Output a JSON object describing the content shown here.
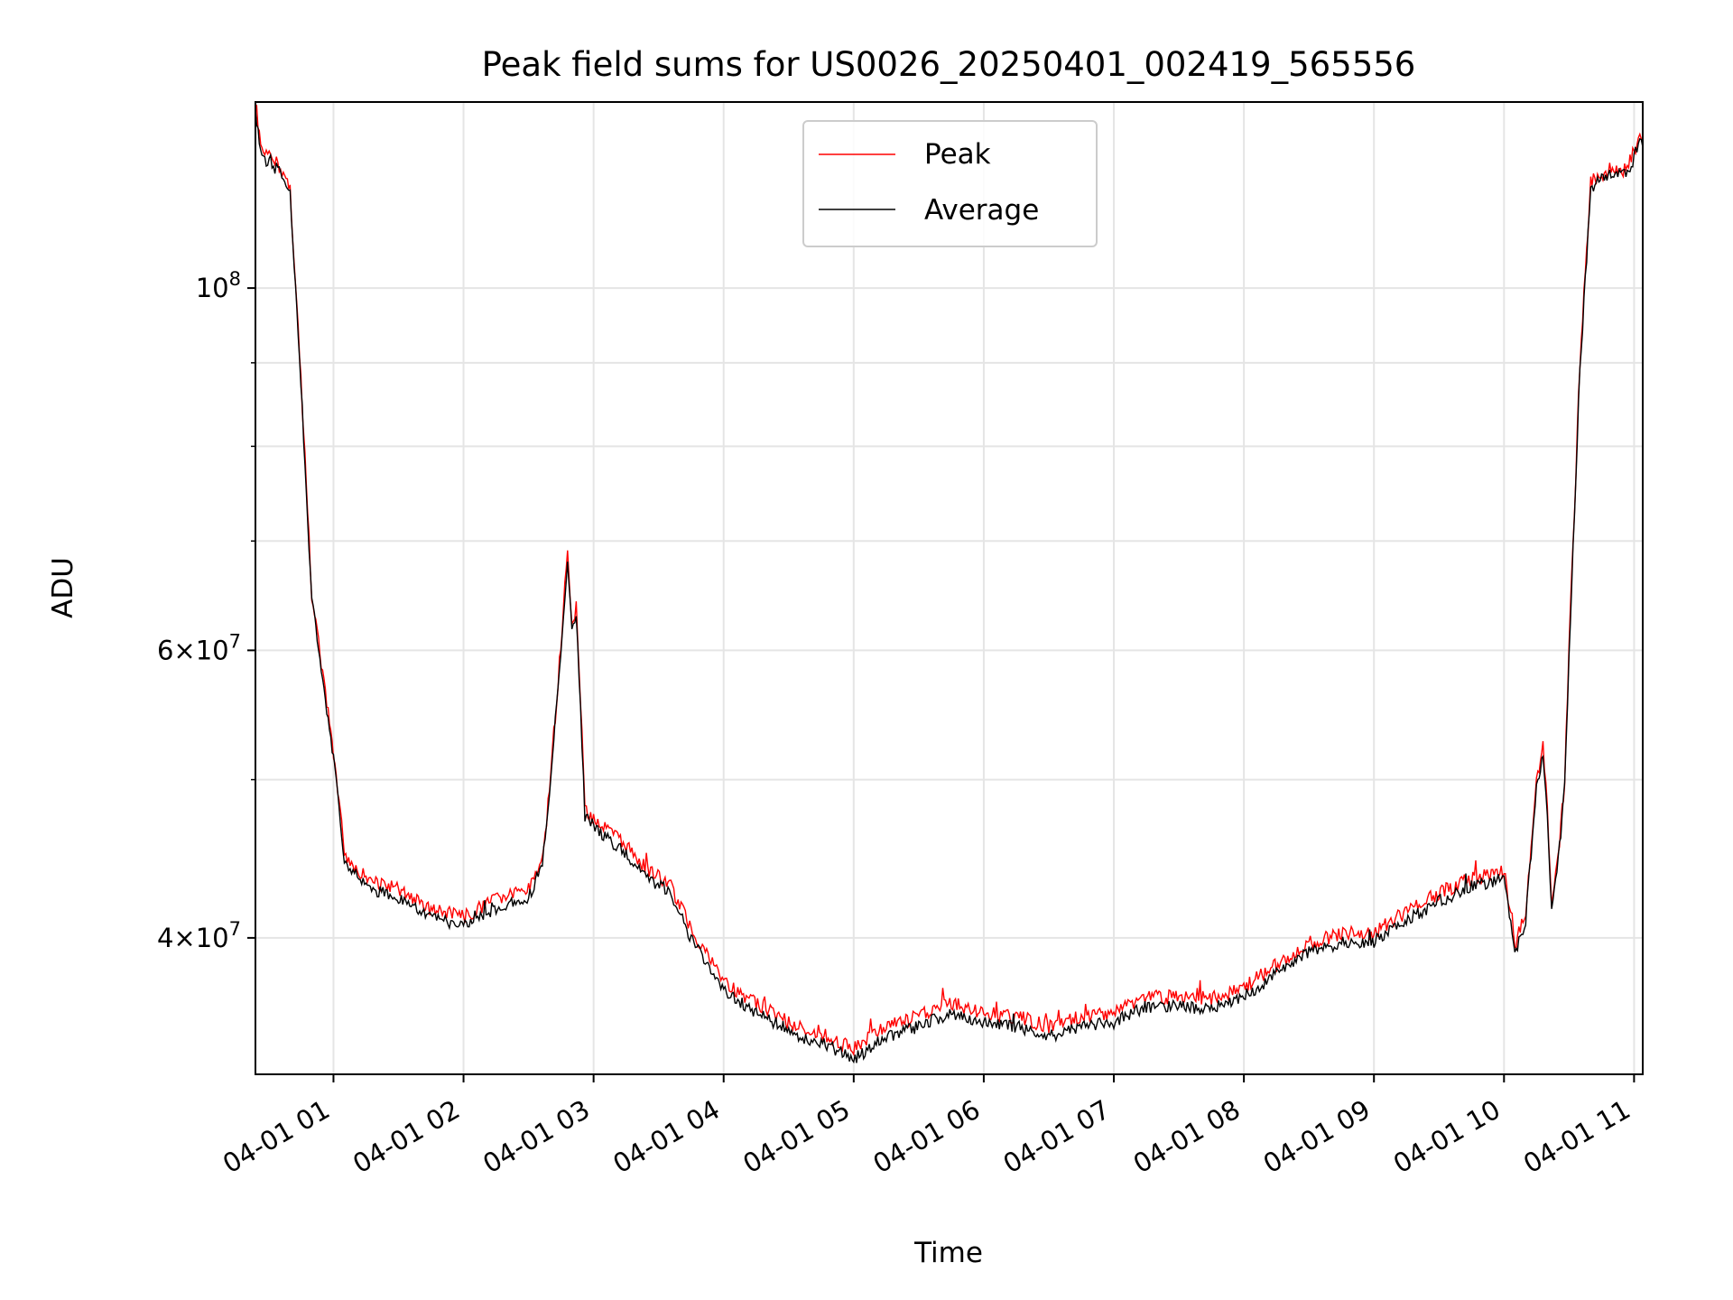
{
  "chart_data": {
    "type": "line",
    "title": "Peak field sums for US0026_20250401_002419_565556",
    "xlabel": "Time",
    "ylabel": "ADU",
    "y_scale": "log",
    "ylim": [
      33000000,
      130000000
    ],
    "xlim": [
      "2025-04-01 00:24",
      "2025-04-01 11:04"
    ],
    "grid": true,
    "legend_position": "upper center",
    "x_ticks": [
      {
        "t": "2025-04-01 01:00",
        "label": "04-01 01"
      },
      {
        "t": "2025-04-01 02:00",
        "label": "04-01 02"
      },
      {
        "t": "2025-04-01 03:00",
        "label": "04-01 03"
      },
      {
        "t": "2025-04-01 04:00",
        "label": "04-01 04"
      },
      {
        "t": "2025-04-01 05:00",
        "label": "04-01 05"
      },
      {
        "t": "2025-04-01 06:00",
        "label": "04-01 06"
      },
      {
        "t": "2025-04-01 07:00",
        "label": "04-01 07"
      },
      {
        "t": "2025-04-01 08:00",
        "label": "04-01 08"
      },
      {
        "t": "2025-04-01 09:00",
        "label": "04-01 09"
      },
      {
        "t": "2025-04-01 10:00",
        "label": "04-01 10"
      },
      {
        "t": "2025-04-01 11:00",
        "label": "04-01 11"
      }
    ],
    "y_ticks": [
      {
        "value": 100000000,
        "base": "10",
        "exp": "8",
        "coef": ""
      },
      {
        "value": 60000000,
        "base": "10",
        "exp": "7",
        "coef": "6"
      },
      {
        "value": 40000000,
        "base": "10",
        "exp": "7",
        "coef": "4"
      }
    ],
    "y_minor_ticks": [
      50000000,
      70000000,
      80000000,
      90000000
    ],
    "series": [
      {
        "name": "Peak",
        "color": "#ff0000",
        "x": [
          "2025-04-01 00:24",
          "2025-04-01 00:27",
          "2025-04-01 00:35",
          "2025-04-01 00:40",
          "2025-04-01 00:45",
          "2025-04-01 00:50",
          "2025-04-01 00:55",
          "2025-04-01 01:00",
          "2025-04-01 01:05",
          "2025-04-01 01:15",
          "2025-04-01 01:30",
          "2025-04-01 01:45",
          "2025-04-01 02:00",
          "2025-04-01 02:15",
          "2025-04-01 02:30",
          "2025-04-01 02:37",
          "2025-04-01 02:43",
          "2025-04-01 02:48",
          "2025-04-01 02:50",
          "2025-04-01 02:52",
          "2025-04-01 02:54",
          "2025-04-01 02:56",
          "2025-04-01 03:00",
          "2025-04-01 03:15",
          "2025-04-01 03:25",
          "2025-04-01 03:35",
          "2025-04-01 03:45",
          "2025-04-01 04:00",
          "2025-04-01 04:15",
          "2025-04-01 04:30",
          "2025-04-01 04:45",
          "2025-04-01 05:00",
          "2025-04-01 05:15",
          "2025-04-01 05:30",
          "2025-04-01 05:45",
          "2025-04-01 06:00",
          "2025-04-01 06:15",
          "2025-04-01 06:30",
          "2025-04-01 06:45",
          "2025-04-01 07:00",
          "2025-04-01 07:15",
          "2025-04-01 07:30",
          "2025-04-01 07:45",
          "2025-04-01 08:00",
          "2025-04-01 08:15",
          "2025-04-01 08:30",
          "2025-04-01 08:45",
          "2025-04-01 09:00",
          "2025-04-01 09:15",
          "2025-04-01 09:30",
          "2025-04-01 09:45",
          "2025-04-01 10:00",
          "2025-04-01 10:05",
          "2025-04-01 10:10",
          "2025-04-01 10:15",
          "2025-04-01 10:18",
          "2025-04-01 10:20",
          "2025-04-01 10:22",
          "2025-04-01 10:25",
          "2025-04-01 10:28",
          "2025-04-01 10:30",
          "2025-04-01 10:35",
          "2025-04-01 10:40",
          "2025-04-01 10:45",
          "2025-04-01 10:50",
          "2025-04-01 10:55",
          "2025-04-01 11:00",
          "2025-04-01 11:02",
          "2025-04-01 11:04"
        ],
        "values": [
          130000000,
          121000000,
          119000000,
          115000000,
          88000000,
          65000000,
          58000000,
          52000000,
          45000000,
          43500000,
          42800000,
          41600000,
          41200000,
          42200000,
          42800000,
          45000000,
          56000000,
          69000000,
          62000000,
          64000000,
          56000000,
          48000000,
          47300000,
          45500000,
          44000000,
          43200000,
          40500000,
          37600000,
          36500000,
          35500000,
          35000000,
          34200000,
          35300000,
          35800000,
          36500000,
          36000000,
          35800000,
          35300000,
          35800000,
          36000000,
          36800000,
          36800000,
          36700000,
          37300000,
          38500000,
          39700000,
          40200000,
          40300000,
          41500000,
          42600000,
          43500000,
          44000000,
          39500000,
          41500000,
          50000000,
          52300000,
          48000000,
          42200000,
          45000000,
          50000000,
          60000000,
          90000000,
          116000000,
          117500000,
          118500000,
          118000000,
          121000000,
          124000000,
          123000000
        ]
      },
      {
        "name": "Average",
        "color": "#000000",
        "x": [
          "2025-04-01 00:24",
          "2025-04-01 00:27",
          "2025-04-01 00:35",
          "2025-04-01 00:40",
          "2025-04-01 00:45",
          "2025-04-01 00:50",
          "2025-04-01 00:55",
          "2025-04-01 01:00",
          "2025-04-01 01:05",
          "2025-04-01 01:15",
          "2025-04-01 01:30",
          "2025-04-01 01:45",
          "2025-04-01 02:00",
          "2025-04-01 02:15",
          "2025-04-01 02:30",
          "2025-04-01 02:37",
          "2025-04-01 02:43",
          "2025-04-01 02:48",
          "2025-04-01 02:50",
          "2025-04-01 02:52",
          "2025-04-01 02:54",
          "2025-04-01 02:56",
          "2025-04-01 03:00",
          "2025-04-01 03:15",
          "2025-04-01 03:25",
          "2025-04-01 03:35",
          "2025-04-01 03:45",
          "2025-04-01 04:00",
          "2025-04-01 04:15",
          "2025-04-01 04:30",
          "2025-04-01 04:45",
          "2025-04-01 05:00",
          "2025-04-01 05:15",
          "2025-04-01 05:30",
          "2025-04-01 05:45",
          "2025-04-01 06:00",
          "2025-04-01 06:15",
          "2025-04-01 06:30",
          "2025-04-01 06:45",
          "2025-04-01 07:00",
          "2025-04-01 07:15",
          "2025-04-01 07:30",
          "2025-04-01 07:45",
          "2025-04-01 08:00",
          "2025-04-01 08:15",
          "2025-04-01 08:30",
          "2025-04-01 08:45",
          "2025-04-01 09:00",
          "2025-04-01 09:15",
          "2025-04-01 09:30",
          "2025-04-01 09:45",
          "2025-04-01 10:00",
          "2025-04-01 10:05",
          "2025-04-01 10:10",
          "2025-04-01 10:15",
          "2025-04-01 10:18",
          "2025-04-01 10:20",
          "2025-04-01 10:22",
          "2025-04-01 10:25",
          "2025-04-01 10:28",
          "2025-04-01 10:30",
          "2025-04-01 10:35",
          "2025-04-01 10:40",
          "2025-04-01 10:45",
          "2025-04-01 10:50",
          "2025-04-01 10:55",
          "2025-04-01 11:00",
          "2025-04-01 11:02",
          "2025-04-01 11:04"
        ],
        "values": [
          128000000,
          120000000,
          118000000,
          114000000,
          87500000,
          64500000,
          57500000,
          51500000,
          44600000,
          43000000,
          42300000,
          41100000,
          40700000,
          41700000,
          42300000,
          44500000,
          55500000,
          68500000,
          61500000,
          63500000,
          55500000,
          47500000,
          46800000,
          45000000,
          43500000,
          42700000,
          40000000,
          37100000,
          36000000,
          35000000,
          34500000,
          33700000,
          34800000,
          35300000,
          36000000,
          35500000,
          35300000,
          34800000,
          35300000,
          35500000,
          36300000,
          36300000,
          36200000,
          36800000,
          38000000,
          39200000,
          39700000,
          39800000,
          41000000,
          42100000,
          43000000,
          43500000,
          39000000,
          41000000,
          49500000,
          51800000,
          47500000,
          41700000,
          44500000,
          49500000,
          59500000,
          89000000,
          115000000,
          116500000,
          117500000,
          117000000,
          120000000,
          123000000,
          122000000
        ]
      }
    ]
  }
}
